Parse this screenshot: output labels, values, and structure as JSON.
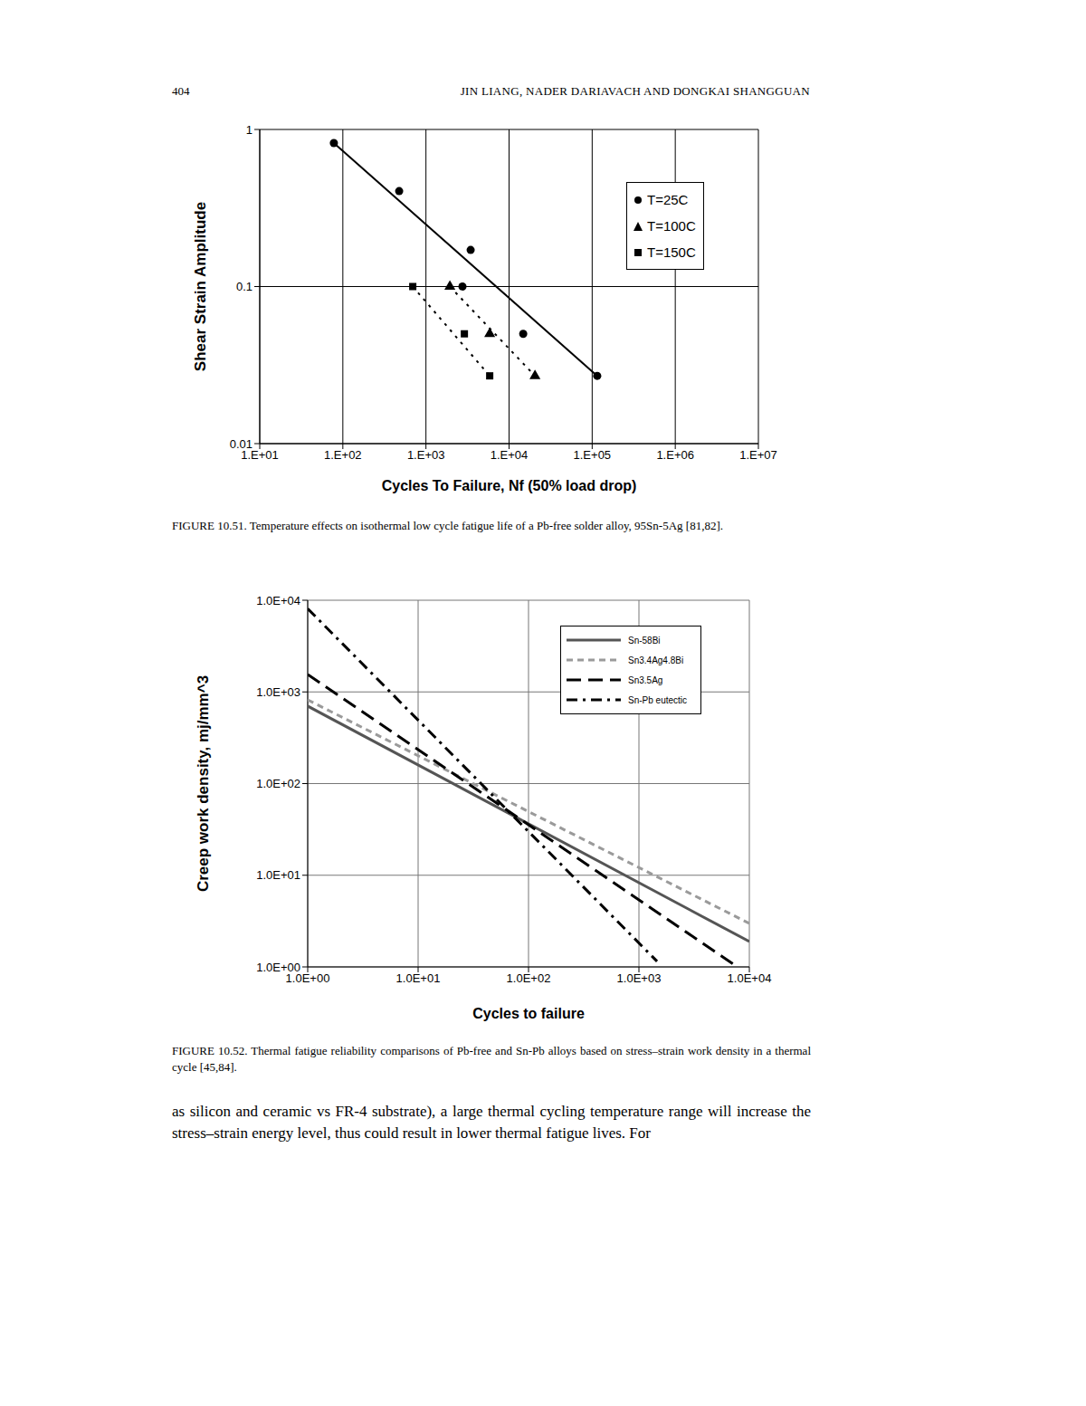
{
  "header": {
    "page": "404",
    "running_head": "JIN LIANG, NADER DARIAVACH AND DONGKAI SHANGGUAN"
  },
  "chart_data": [
    {
      "type": "scatter",
      "xlabel": "Cycles To Failure, Nf (50% load drop)",
      "ylabel": "Shear Strain Amplitude",
      "log": true,
      "grid": true,
      "legend": "upper right",
      "xlim": [
        10,
        10000000
      ],
      "ylim": [
        0.01,
        1
      ],
      "xticks": [
        {
          "value": 10,
          "label": "1.E+01"
        },
        {
          "value": 100,
          "label": "1.E+02"
        },
        {
          "value": 1000,
          "label": "1.E+03"
        },
        {
          "value": 10000,
          "label": "1.E+04"
        },
        {
          "value": 100000,
          "label": "1.E+05"
        },
        {
          "value": 1000000,
          "label": "1.E+06"
        },
        {
          "value": 10000000,
          "label": "1.E+07"
        }
      ],
      "yticks": [
        0.01,
        0.1,
        1
      ],
      "series": [
        {
          "name": "T=25C",
          "color": "#000000",
          "marker": "circle",
          "line_style": "solid",
          "x": [
            78,
            476,
            3450,
            2750,
            14800,
            115000
          ],
          "values": [
            0.82,
            0.405,
            0.171,
            0.1,
            0.05,
            0.027
          ],
          "fit": {
            "x": [
              78,
              115000
            ],
            "values": [
              0.82,
              0.027
            ]
          }
        },
        {
          "name": "T=100C",
          "color": "#000000",
          "marker": "triangle",
          "line_style": "dotted",
          "x": [
            1940,
            5850,
            20500
          ],
          "values": [
            0.1,
            0.05,
            0.027
          ],
          "fit": {
            "x": [
              1940,
              20500
            ],
            "values": [
              0.1,
              0.027
            ]
          }
        },
        {
          "name": "T=150C",
          "color": "#000000",
          "marker": "square",
          "line_style": "dotted",
          "x": [
            694,
            2900,
            5850
          ],
          "values": [
            0.1,
            0.05,
            0.027
          ],
          "fit": {
            "x": [
              694,
              5850
            ],
            "values": [
              0.1,
              0.027
            ]
          }
        }
      ]
    },
    {
      "type": "line",
      "xlabel": "Cycles to failure",
      "ylabel": "Creep work density, mj/mm^3",
      "log": true,
      "grid": true,
      "legend": "upper right",
      "xlim": [
        1,
        10000
      ],
      "ylim": [
        1,
        10000
      ],
      "xticks": [
        {
          "value": 1,
          "label": "1.0E+00"
        },
        {
          "value": 10,
          "label": "1.0E+01"
        },
        {
          "value": 100,
          "label": "1.0E+02"
        },
        {
          "value": 1000,
          "label": "1.0E+03"
        },
        {
          "value": 10000,
          "label": "1.0E+04"
        }
      ],
      "yticks": [
        {
          "value": 1,
          "label": "1.0E+00"
        },
        {
          "value": 10,
          "label": "1.0E+01"
        },
        {
          "value": 100,
          "label": "1.0E+02"
        },
        {
          "value": 1000,
          "label": "1.0E+03"
        },
        {
          "value": 10000,
          "label": "1.0E+04"
        }
      ],
      "series": [
        {
          "name": "Sn-58Bi",
          "color": "#555555",
          "line_style": "solid",
          "x": [
            1,
            10000
          ],
          "values": [
            700,
            1.89
          ]
        },
        {
          "name": "Sn3.4Ag4.8Bi",
          "color": "#9a9a9a",
          "line_style": "dashed",
          "x": [
            1,
            10000
          ],
          "values": [
            820,
            2.98
          ]
        },
        {
          "name": "Sn3.5Ag",
          "color": "#000000",
          "line_style": "long_dash",
          "x": [
            1,
            7820
          ],
          "values": [
            1550,
            1
          ]
        },
        {
          "name": "Sn-Pb eutectic",
          "color": "#000000",
          "line_style": "dash_dot",
          "x": [
            1,
            1460
          ],
          "values": [
            8100,
            1.15
          ]
        }
      ]
    }
  ],
  "captions": [
    "FIGURE 10.51. Temperature effects on isothermal low cycle fatigue life of a Pb-free solder alloy, 95Sn-5Ag [81,82].",
    "FIGURE 10.52. Thermal fatigue reliability comparisons of Pb-free and Sn-Pb alloys based on stress–strain work density in a thermal cycle [45,84]."
  ],
  "body": "as silicon and ceramic vs FR-4 substrate), a large thermal cycling temperature range will increase the stress–strain energy level, thus could result in lower thermal fatigue lives. For"
}
